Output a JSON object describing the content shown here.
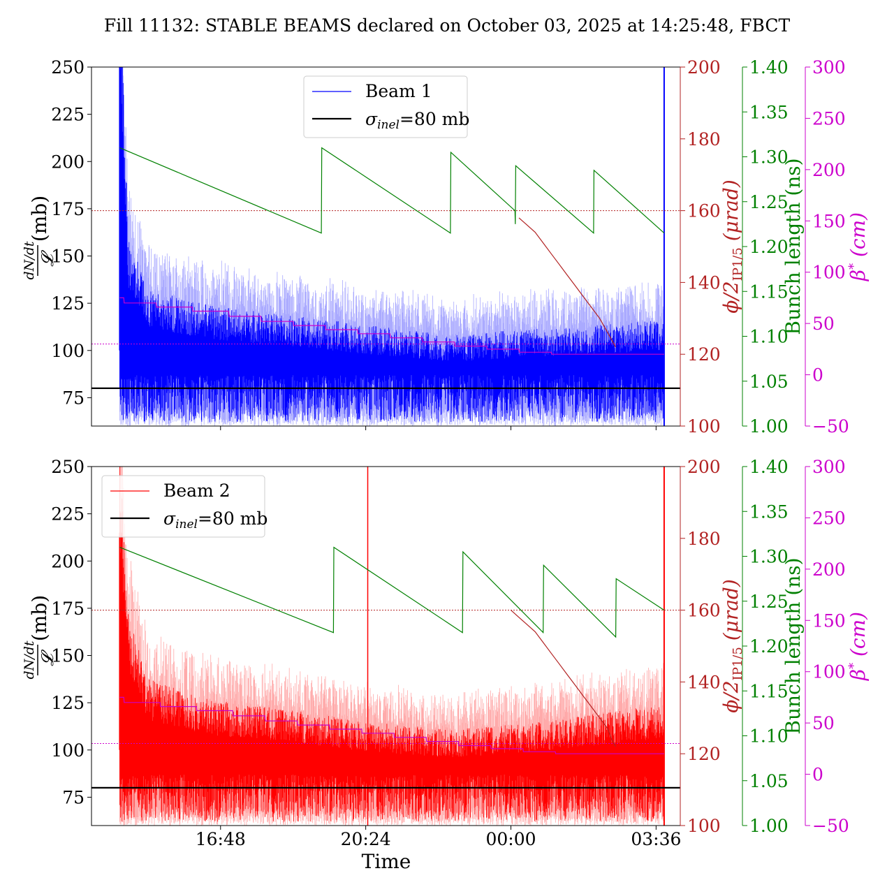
{
  "figure": {
    "title": "Fill 11132: STABLE BEAMS declared on October 03, 2025 at 14:25:48, FBCT",
    "xlabel": "Time"
  },
  "colors": {
    "beam1": "#0000ff",
    "beam1_light": "#aaaaff",
    "beam2": "#ff0000",
    "beam2_light": "#ffaaaa",
    "crossing": "#b22222",
    "bunch": "#008000",
    "beta": "#cc00cc",
    "ref": "#000000"
  },
  "axes_labels": {
    "left_num": "dN/dt",
    "left_den": "𝓛",
    "left_unit": "(mb)",
    "phi": "ϕ/2",
    "phi_sub": "IP1/5",
    "phi_unit": "(μrad)",
    "bunch": "Bunch length (ns)",
    "beta": "β",
    "beta_sup": "*",
    "beta_unit": "(cm)"
  },
  "chart_data": [
    {
      "type": "line",
      "panel": "top",
      "x_ticks": [],
      "xlim_hours": [
        13.6,
        28.2
      ],
      "ylim": [
        60,
        250
      ],
      "yticks": [
        75,
        100,
        125,
        150,
        175,
        200,
        225,
        250
      ],
      "legend": {
        "position": "top-center",
        "entries": [
          "Beam 1",
          "σinel=80 mb"
        ]
      },
      "reference_line": {
        "label": "σinel=80 mb",
        "value": 80
      },
      "series": [
        {
          "name": "Beam 1",
          "axis": "left",
          "pattern": "noisy cross-section, decaying from ~250 mb at start to ~95 mb",
          "envelope": [
            [
              14.3,
              250
            ],
            [
              14.5,
              140
            ],
            [
              15.0,
              118
            ],
            [
              16.5,
              112
            ],
            [
              18.5,
              108
            ],
            [
              20.5,
              104
            ],
            [
              22.5,
              100
            ],
            [
              24.0,
              102
            ],
            [
              26.0,
              104
            ],
            [
              27.8,
              106
            ]
          ]
        },
        {
          "axis": "crossing",
          "ylim": [
            100,
            200
          ],
          "yticks": [
            100,
            120,
            140,
            160,
            180,
            200
          ],
          "reference": 160,
          "points": [
            [
              24.2,
              158
            ],
            [
              24.4,
              156
            ],
            [
              24.6,
              154
            ],
            [
              24.8,
              151
            ],
            [
              25.0,
              148
            ],
            [
              25.2,
              145
            ],
            [
              25.4,
              142
            ],
            [
              25.6,
              139
            ],
            [
              25.8,
              136
            ],
            [
              26.0,
              133
            ],
            [
              26.2,
              130
            ],
            [
              26.35,
              127
            ],
            [
              26.5,
              124
            ],
            [
              26.6,
              122
            ]
          ]
        },
        {
          "axis": "bunch",
          "ylim": [
            1.0,
            1.4
          ],
          "yticks": [
            1.0,
            1.05,
            1.1,
            1.15,
            1.2,
            1.25,
            1.3,
            1.35,
            1.4
          ],
          "points": [
            [
              14.3,
              1.31
            ],
            [
              19.3,
              1.215
            ],
            [
              19.31,
              1.31
            ],
            [
              22.5,
              1.215
            ],
            [
              22.51,
              1.305
            ],
            [
              24.1,
              1.24
            ],
            [
              24.11,
              1.225
            ],
            [
              24.12,
              1.29
            ],
            [
              26.05,
              1.215
            ],
            [
              26.06,
              1.285
            ],
            [
              27.8,
              1.215
            ]
          ]
        },
        {
          "axis": "beta",
          "ylim": [
            -50,
            300
          ],
          "yticks": [
            -50,
            0,
            50,
            100,
            150,
            200,
            250,
            300
          ],
          "reference": 30,
          "points": [
            [
              14.3,
              75
            ],
            [
              14.4,
              75
            ],
            [
              14.41,
              70
            ],
            [
              15.2,
              70
            ],
            [
              15.21,
              66
            ],
            [
              16.1,
              66
            ],
            [
              16.11,
              62
            ],
            [
              17.0,
              62
            ],
            [
              17.01,
              57
            ],
            [
              17.8,
              57
            ],
            [
              17.81,
              52
            ],
            [
              18.6,
              52
            ],
            [
              18.61,
              48
            ],
            [
              19.4,
              48
            ],
            [
              19.41,
              44
            ],
            [
              20.2,
              44
            ],
            [
              20.21,
              40
            ],
            [
              21.0,
              40
            ],
            [
              21.01,
              36
            ],
            [
              21.8,
              36
            ],
            [
              21.81,
              32
            ],
            [
              22.6,
              32
            ],
            [
              22.61,
              28
            ],
            [
              23.4,
              28
            ],
            [
              23.41,
              25
            ],
            [
              24.2,
              25
            ],
            [
              24.21,
              22
            ],
            [
              25.0,
              22
            ],
            [
              25.01,
              20
            ],
            [
              27.8,
              20
            ]
          ]
        }
      ]
    },
    {
      "type": "line",
      "panel": "bottom",
      "x_ticks": [
        "16:48",
        "20:24",
        "00:00",
        "03:36"
      ],
      "x_tick_hours": [
        16.8,
        20.4,
        24.0,
        27.6
      ],
      "xlim_hours": [
        13.6,
        28.2
      ],
      "ylim": [
        60,
        250
      ],
      "yticks": [
        75,
        100,
        125,
        150,
        175,
        200,
        225,
        250
      ],
      "legend": {
        "position": "top-left",
        "entries": [
          "Beam 2",
          "σinel=80 mb"
        ]
      },
      "reference_line": {
        "label": "σinel=80 mb",
        "value": 80
      },
      "series": [
        {
          "name": "Beam 2",
          "axis": "left",
          "pattern": "noisy cross-section, decaying from ~215 mb at start to ~95 mb",
          "envelope": [
            [
              14.3,
              215
            ],
            [
              14.5,
              150
            ],
            [
              15.0,
              122
            ],
            [
              16.5,
              114
            ],
            [
              18.5,
              110
            ],
            [
              20.5,
              105
            ],
            [
              22.5,
              102
            ],
            [
              24.0,
              104
            ],
            [
              26.0,
              108
            ],
            [
              27.8,
              112
            ]
          ]
        },
        {
          "axis": "crossing",
          "ylim": [
            100,
            200
          ],
          "yticks": [
            100,
            120,
            140,
            160,
            180,
            200
          ],
          "reference": 160,
          "points": [
            [
              24.0,
              160
            ],
            [
              24.2,
              158
            ],
            [
              24.4,
              156
            ],
            [
              24.6,
              154
            ],
            [
              24.8,
              151
            ],
            [
              25.0,
              148
            ],
            [
              25.2,
              145
            ],
            [
              25.4,
              142
            ],
            [
              25.6,
              139
            ],
            [
              25.8,
              136
            ],
            [
              26.0,
              133
            ],
            [
              26.2,
              130
            ],
            [
              26.4,
              127
            ],
            [
              26.5,
              124
            ],
            [
              26.6,
              122
            ]
          ]
        },
        {
          "axis": "bunch",
          "ylim": [
            1.0,
            1.4
          ],
          "yticks": [
            1.0,
            1.05,
            1.1,
            1.15,
            1.2,
            1.25,
            1.3,
            1.35,
            1.4
          ],
          "points": [
            [
              14.3,
              1.31
            ],
            [
              19.6,
              1.215
            ],
            [
              19.61,
              1.31
            ],
            [
              22.8,
              1.215
            ],
            [
              22.81,
              1.305
            ],
            [
              24.8,
              1.215
            ],
            [
              24.81,
              1.29
            ],
            [
              26.6,
              1.21
            ],
            [
              26.61,
              1.275
            ],
            [
              27.8,
              1.24
            ]
          ]
        },
        {
          "axis": "beta",
          "ylim": [
            -50,
            300
          ],
          "yticks": [
            -50,
            0,
            50,
            100,
            150,
            200,
            250,
            300
          ],
          "reference": 30,
          "points": [
            [
              14.3,
              75
            ],
            [
              14.4,
              75
            ],
            [
              14.41,
              70
            ],
            [
              15.3,
              70
            ],
            [
              15.31,
              66
            ],
            [
              16.2,
              66
            ],
            [
              16.21,
              62
            ],
            [
              17.1,
              62
            ],
            [
              17.11,
              57
            ],
            [
              17.9,
              57
            ],
            [
              17.91,
              52
            ],
            [
              18.7,
              52
            ],
            [
              18.71,
              48
            ],
            [
              19.5,
              48
            ],
            [
              19.51,
              44
            ],
            [
              20.3,
              44
            ],
            [
              20.31,
              40
            ],
            [
              21.1,
              40
            ],
            [
              21.11,
              36
            ],
            [
              21.9,
              36
            ],
            [
              21.91,
              32
            ],
            [
              22.7,
              32
            ],
            [
              22.71,
              28
            ],
            [
              23.5,
              28
            ],
            [
              23.51,
              25
            ],
            [
              24.3,
              25
            ],
            [
              24.31,
              22
            ],
            [
              25.1,
              22
            ],
            [
              25.11,
              20
            ],
            [
              27.8,
              20
            ]
          ]
        }
      ]
    }
  ]
}
